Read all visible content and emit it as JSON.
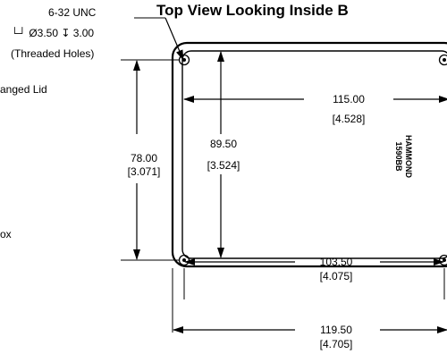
{
  "drawing": {
    "title": "Top View Looking Inside B",
    "brand_line1": "HAMMOND",
    "brand_line2": "1590BB",
    "left_label_1": "anged Lid",
    "left_label_2": "ox"
  },
  "hole_note": {
    "line1": "6-32 UNC",
    "line2": "└┘ Ø3.50 ↧ 3.00",
    "line3": "(Threaded Holes)"
  },
  "dimensions": {
    "inner_width": {
      "mm": "115.00",
      "in": "[4.528]"
    },
    "inner_height": {
      "mm": "89.50",
      "in": "[3.524]"
    },
    "hole_spacing_height": {
      "mm": "78.00",
      "in": "[3.071]"
    },
    "hole_spacing_width": {
      "mm": "103.50",
      "in": "[4.075]"
    },
    "outer_width": {
      "mm": "119.50",
      "in": "[4.705]"
    }
  }
}
